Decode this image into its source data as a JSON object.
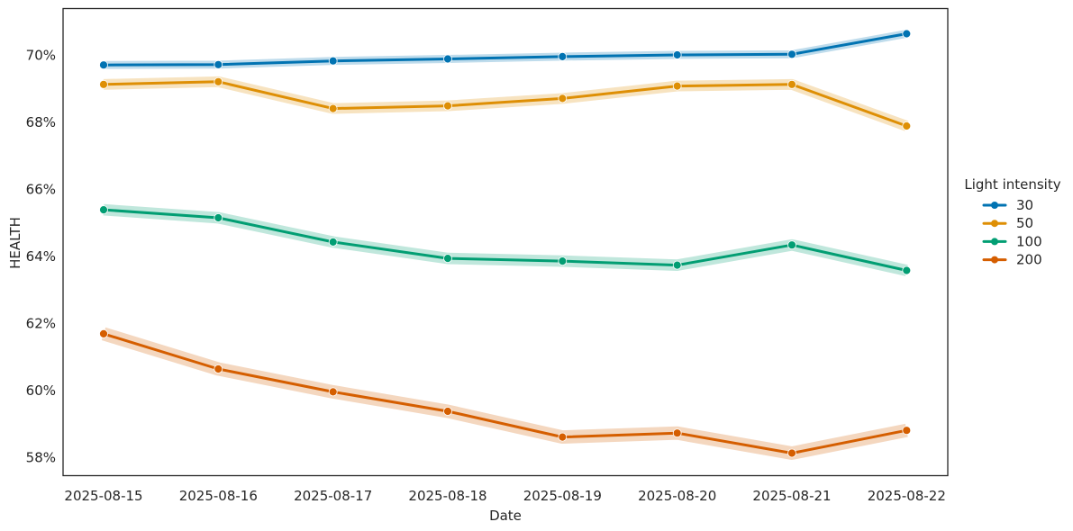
{
  "figure": {
    "background": "#ffffff",
    "text_color": "#262626",
    "spine_color": "#262626"
  },
  "chart_data": {
    "type": "line",
    "title": "",
    "xlabel": "Date",
    "ylabel": "HEALTH",
    "x": [
      "2025-08-15",
      "2025-08-16",
      "2025-08-17",
      "2025-08-18",
      "2025-08-19",
      "2025-08-20",
      "2025-08-21",
      "2025-08-22"
    ],
    "series": [
      {
        "name": "30",
        "color": "#0173b2",
        "band_halfwidth_pct": 0.12,
        "values": [
          69.7,
          69.71,
          69.82,
          69.88,
          69.95,
          70.0,
          70.02,
          70.63
        ]
      },
      {
        "name": "50",
        "color": "#de8f05",
        "band_halfwidth_pct": 0.16,
        "values": [
          69.12,
          69.2,
          68.4,
          68.48,
          68.7,
          69.07,
          69.12,
          67.88
        ]
      },
      {
        "name": "100",
        "color": "#029e73",
        "band_halfwidth_pct": 0.17,
        "values": [
          65.38,
          65.14,
          64.42,
          63.93,
          63.85,
          63.73,
          64.33,
          63.57
        ]
      },
      {
        "name": "200",
        "color": "#d55e00",
        "band_halfwidth_pct": 0.2,
        "values": [
          61.68,
          60.63,
          59.95,
          59.37,
          58.6,
          58.72,
          58.12,
          58.8
        ]
      }
    ],
    "y_ticks": [
      "70%",
      "68%",
      "66%",
      "64%",
      "62%",
      "60%",
      "58%"
    ],
    "y_tick_values": [
      70,
      68,
      66,
      64,
      62,
      60,
      58
    ],
    "ylim": [
      57.4,
      71.4
    ],
    "grid": false,
    "legend": {
      "title": "Light intensity",
      "position": "right"
    }
  }
}
